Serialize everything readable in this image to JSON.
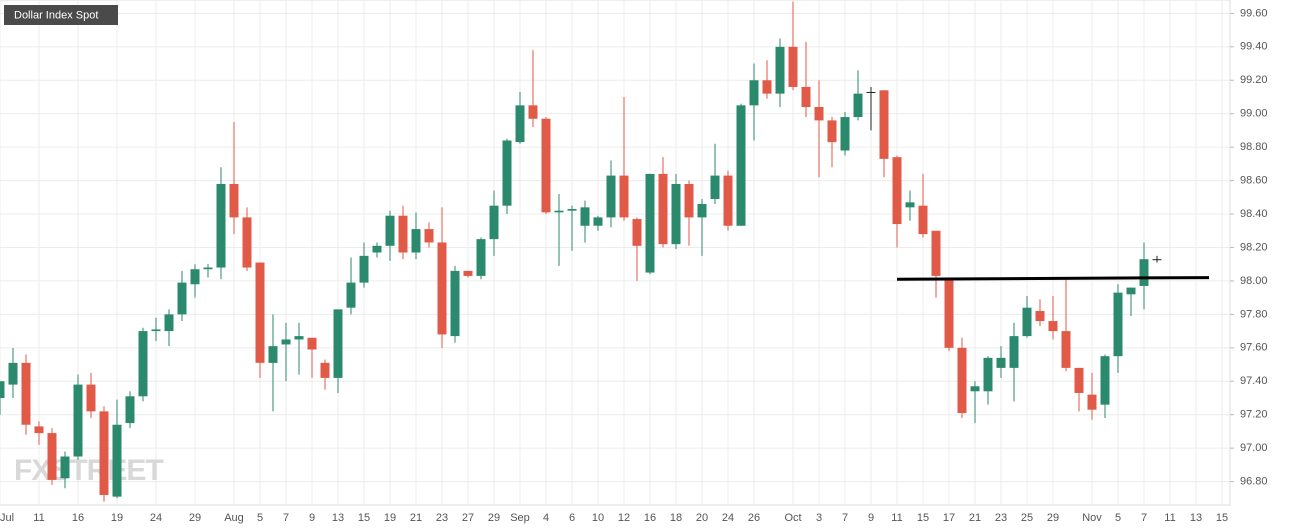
{
  "chart_data": {
    "type": "candlestick",
    "title": "Dollar Index Spot",
    "watermark": "FXSTREET",
    "categories": [
      "Jul",
      null,
      null,
      "11",
      null,
      null,
      "16",
      null,
      null,
      "19",
      null,
      null,
      "24",
      null,
      null,
      "29",
      null,
      null,
      "Aug",
      null,
      "5",
      null,
      "7",
      null,
      "9",
      null,
      "13",
      null,
      "15",
      null,
      "19",
      null,
      "21",
      null,
      "23",
      null,
      "27",
      null,
      "29",
      null,
      "Sep",
      null,
      "4",
      null,
      "6",
      null,
      "10",
      null,
      "12",
      null,
      "16",
      null,
      "18",
      null,
      "20",
      null,
      "24",
      null,
      "26",
      null,
      null,
      "Oct",
      null,
      "3",
      null,
      "7",
      null,
      "9",
      null,
      "11",
      null,
      "15",
      null,
      "17",
      null,
      "21",
      null,
      "23",
      null,
      "25",
      null,
      "29",
      null,
      null,
      "Nov",
      null,
      "5",
      null,
      "7",
      null,
      "11",
      null,
      "13",
      null,
      "15"
    ],
    "open": [
      97.3,
      97.38,
      97.51,
      97.13,
      97.09,
      96.82,
      96.95,
      97.38,
      97.22,
      96.71,
      97.15,
      97.31,
      97.7,
      97.7,
      97.8,
      97.98,
      98.07,
      98.08,
      98.58,
      98.38,
      98.11,
      97.51,
      97.62,
      97.65,
      97.66,
      97.51,
      97.42,
      97.84,
      97.99,
      98.17,
      98.21,
      98.39,
      98.17,
      98.31,
      98.23,
      97.67,
      98.06,
      98.03,
      98.25,
      98.45,
      98.83,
      99.05,
      98.97,
      98.41,
      98.42,
      98.33,
      98.33,
      98.38,
      98.63,
      98.37,
      98.05,
      98.64,
      98.22,
      98.58,
      98.38,
      98.49,
      98.63,
      98.33,
      99.05,
      99.2,
      99.12,
      99.4,
      99.16,
      99.04,
      98.96,
      98.78,
      98.98,
      99.13,
      99.14,
      98.74,
      98.44,
      98.45,
      98.3,
      98.01,
      97.6,
      97.34,
      97.34,
      97.48,
      97.48,
      97.67,
      97.82,
      97.76,
      97.7,
      97.48,
      97.32,
      97.26,
      97.55,
      97.92,
      97.97,
      98.13,
      null,
      null,
      null,
      null,
      null
    ],
    "high": [
      97.4,
      97.6,
      97.56,
      97.16,
      97.12,
      96.98,
      97.44,
      97.45,
      97.25,
      97.29,
      97.34,
      97.72,
      97.78,
      97.83,
      98.06,
      98.1,
      98.1,
      98.68,
      98.95,
      98.44,
      98.11,
      97.8,
      97.75,
      97.75,
      97.66,
      97.53,
      97.83,
      98.14,
      98.23,
      98.23,
      98.42,
      98.45,
      98.41,
      98.35,
      98.44,
      98.09,
      98.06,
      98.26,
      98.54,
      98.85,
      99.13,
      99.38,
      98.98,
      98.52,
      98.45,
      98.48,
      98.39,
      98.72,
      99.1,
      98.38,
      98.64,
      98.74,
      98.64,
      98.6,
      98.49,
      98.82,
      98.66,
      99.06,
      99.3,
      99.32,
      99.45,
      99.67,
      99.43,
      99.2,
      98.98,
      99.01,
      99.26,
      99.16,
      99.14,
      98.75,
      98.54,
      98.64,
      98.3,
      98.01,
      97.66,
      97.4,
      97.55,
      97.61,
      97.75,
      97.91,
      97.89,
      97.91,
      98.01,
      97.48,
      97.45,
      97.56,
      97.98,
      97.96,
      98.23,
      98.15,
      null,
      null,
      null,
      null,
      null
    ],
    "low": [
      97.2,
      97.3,
      97.08,
      97.02,
      96.78,
      96.76,
      96.93,
      97.18,
      96.68,
      96.7,
      97.12,
      97.28,
      97.64,
      97.61,
      97.76,
      97.9,
      98.02,
      98.01,
      98.28,
      98.06,
      97.42,
      97.22,
      97.4,
      97.44,
      97.42,
      97.35,
      97.33,
      97.8,
      97.96,
      98.14,
      98.12,
      98.13,
      98.13,
      98.2,
      97.6,
      97.63,
      98.02,
      98.01,
      98.15,
      98.4,
      98.82,
      98.92,
      98.4,
      98.09,
      98.18,
      98.23,
      98.3,
      98.32,
      98.36,
      98.0,
      98.04,
      98.2,
      98.19,
      98.21,
      98.15,
      98.46,
      98.3,
      98.33,
      98.84,
      99.09,
      99.04,
      99.14,
      98.98,
      98.62,
      98.68,
      98.75,
      98.96,
      98.9,
      98.62,
      98.2,
      98.36,
      98.26,
      97.9,
      97.58,
      97.18,
      97.15,
      97.26,
      97.42,
      97.28,
      97.66,
      97.73,
      97.65,
      97.46,
      97.22,
      97.17,
      97.18,
      97.45,
      97.79,
      97.83,
      98.11,
      null,
      null,
      null,
      null,
      null
    ],
    "close": [
      97.4,
      97.51,
      97.14,
      97.09,
      96.81,
      96.95,
      97.38,
      97.22,
      96.72,
      97.14,
      97.31,
      97.7,
      97.71,
      97.8,
      97.99,
      98.07,
      98.08,
      98.58,
      98.38,
      98.08,
      97.51,
      97.61,
      97.65,
      97.67,
      97.59,
      97.42,
      97.83,
      97.99,
      98.15,
      98.21,
      98.39,
      98.17,
      98.31,
      98.23,
      97.68,
      98.06,
      98.03,
      98.25,
      98.45,
      98.84,
      99.05,
      98.97,
      98.41,
      98.42,
      98.43,
      98.44,
      98.38,
      98.63,
      98.38,
      98.21,
      98.64,
      98.22,
      98.58,
      98.38,
      98.46,
      98.63,
      98.33,
      99.05,
      99.2,
      99.12,
      99.4,
      99.16,
      99.04,
      98.96,
      98.83,
      98.98,
      99.12,
      99.13,
      98.73,
      98.34,
      98.47,
      98.28,
      98.03,
      97.6,
      97.21,
      97.37,
      97.54,
      97.54,
      97.67,
      97.84,
      97.76,
      97.7,
      97.48,
      97.33,
      97.23,
      97.55,
      97.93,
      97.96,
      98.13,
      98.13,
      null,
      null,
      null,
      null,
      null
    ],
    "up_color": "#2b8a6e",
    "down_color": "#e05a47",
    "flat_color": "#222222",
    "trendline": {
      "x": [
        69,
        93
      ],
      "y": [
        98.01,
        98.02
      ],
      "color": "#000000"
    },
    "ylim": [
      96.66,
      99.68
    ],
    "yticks": [
      {
        "value": 96.8,
        "label": "96.80"
      },
      {
        "value": 97.0,
        "label": "97.00"
      },
      {
        "value": 97.2,
        "label": "97.20"
      },
      {
        "value": 97.4,
        "label": "97.40"
      },
      {
        "value": 97.6,
        "label": "97.60"
      },
      {
        "value": 97.8,
        "label": "97.80"
      },
      {
        "value": 98.0,
        "label": "98.00"
      },
      {
        "value": 98.2,
        "label": "98.20"
      },
      {
        "value": 98.4,
        "label": "98.40"
      },
      {
        "value": 98.6,
        "label": "98.60"
      },
      {
        "value": 98.8,
        "label": "98.80"
      },
      {
        "value": 99.0,
        "label": "99.00"
      },
      {
        "value": 99.2,
        "label": "99.20"
      },
      {
        "value": 99.4,
        "label": "99.40"
      },
      {
        "value": 99.6,
        "label": "99.60"
      }
    ],
    "grid": true
  }
}
